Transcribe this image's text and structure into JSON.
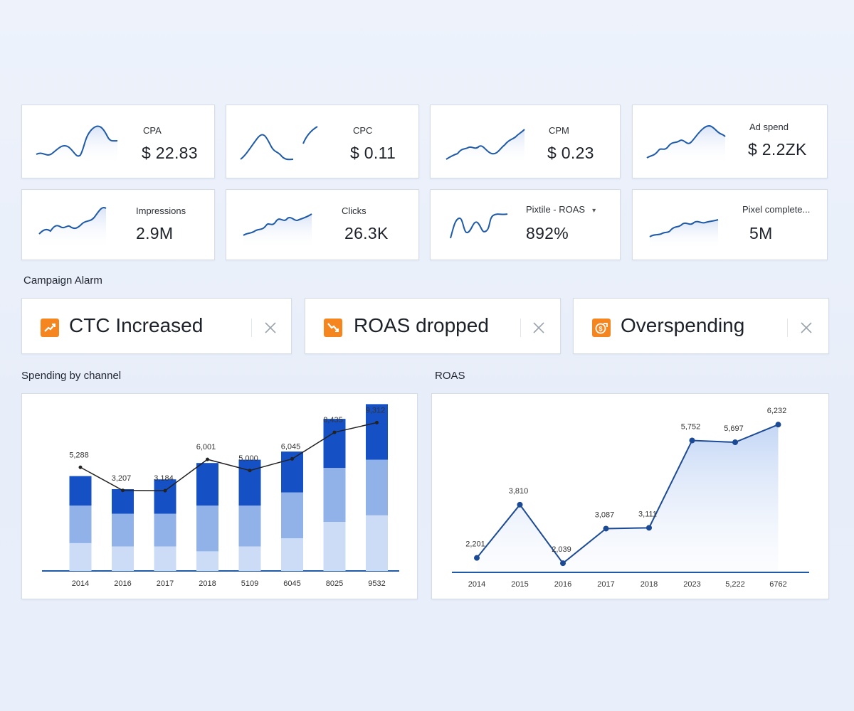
{
  "colors": {
    "accent": "#1f5aa8",
    "bar_dark": "#1550c4",
    "bar_mid": "#90b2e8",
    "bar_light": "#cddcf6",
    "alarm_orange": "#f5861f",
    "line_black": "#222222"
  },
  "kpis": [
    {
      "label": "CPA",
      "value": "$ 22.83",
      "icon": "sparkline"
    },
    {
      "label": "CPC",
      "value": "$ 0.11",
      "icon": "sparkline"
    },
    {
      "label": "CPM",
      "value": "$ 0.23",
      "icon": "sparkline"
    },
    {
      "label": "Ad spend",
      "value": "$ 2.2ZK",
      "icon": "sparkline"
    },
    {
      "label": "Impressions",
      "value": "2.9M",
      "icon": "sparkline"
    },
    {
      "label": "Clicks",
      "value": "26.3K",
      "icon": "sparkline"
    },
    {
      "label": "Pixtile - ROAS",
      "value": "892%",
      "icon": "sparkline",
      "dropdown": "▾"
    },
    {
      "label": "Pixel complete...",
      "value": "5M",
      "icon": "sparkline"
    }
  ],
  "campaign_alarm": {
    "title": "Campaign Alarm",
    "alarms": [
      {
        "text": "CTC Increased",
        "icon": "trend-up-icon"
      },
      {
        "text": "ROAS dropped",
        "icon": "trend-down-icon"
      },
      {
        "text": "Overspending",
        "icon": "dollar-up-icon"
      }
    ]
  },
  "spending": {
    "title": "Spending by channel"
  },
  "roas": {
    "title": "ROAS"
  },
  "chart_data": [
    {
      "type": "bar",
      "title": "Spending by channel",
      "categories": [
        "2014",
        "2016",
        "2017",
        "2018",
        "5109",
        "6045",
        "8025",
        "9532"
      ],
      "series": [
        {
          "values": [
            17,
            15,
            15,
            12,
            15,
            20,
            30,
            34
          ]
        },
        {
          "values": [
            23,
            20,
            20,
            28,
            25,
            28,
            33,
            34
          ]
        },
        {
          "values": [
            18,
            15,
            21,
            26,
            28,
            25,
            30,
            34
          ]
        }
      ],
      "line": {
        "labels": [
          "5,288",
          "3,207",
          "3,184",
          "6,001",
          "5,000",
          "6,045",
          "8,435",
          "9,312"
        ],
        "values": [
          5288,
          3207,
          3184,
          6001,
          5000,
          6045,
          8435,
          9312
        ]
      },
      "ylim": [
        0,
        100
      ]
    },
    {
      "type": "area",
      "title": "ROAS",
      "categories": [
        "2014",
        "2015",
        "2016",
        "2017",
        "2018",
        "2023",
        "5,222",
        "6762"
      ],
      "values": [
        2201,
        3810,
        2039,
        3087,
        3111,
        5752,
        5697,
        6232
      ],
      "labels": [
        "2,201",
        "3,810",
        "2,039",
        "3,087",
        "3,111",
        "5,752",
        "5,697",
        "6,232"
      ]
    }
  ]
}
